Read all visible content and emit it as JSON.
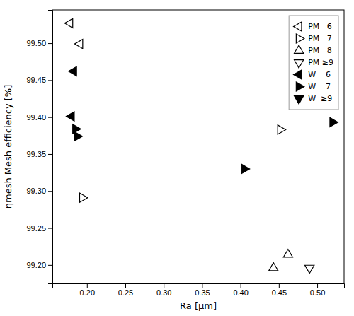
{
  "chart_data": {
    "type": "scatter",
    "xlabel": "Ra [μm]",
    "ylabel": "ηmesh Mesh efficiency [%]",
    "xlim": [
      0.155,
      0.535
    ],
    "ylim": [
      99.175,
      99.545
    ],
    "xticks": [
      {
        "value": 0.2,
        "label": "0.20"
      },
      0.25,
      {
        "value": 0.3,
        "label": "0.30"
      },
      0.35,
      {
        "value": 0.4,
        "label": "0.40"
      },
      0.45,
      {
        "value": 0.5,
        "label": "0.50"
      }
    ],
    "yticks": [
      {
        "value": 99.2,
        "label": "99.20"
      },
      99.25,
      {
        "value": 99.3,
        "label": "99.30"
      },
      99.35,
      {
        "value": 99.4,
        "label": "99.40"
      },
      99.45,
      {
        "value": 99.5,
        "label": "99.50"
      }
    ],
    "grid": false,
    "legend": "upper right",
    "series": [
      {
        "name": "PM   6",
        "marker": "triangle-left-open",
        "color": "black",
        "x": [
          0.178,
          0.191
        ],
        "values": [
          99.527,
          99.499
        ]
      },
      {
        "name": "PM   7",
        "marker": "triangle-right-open",
        "color": "black",
        "x": [
          0.194,
          0.452
        ],
        "values": [
          99.291,
          99.383
        ]
      },
      {
        "name": "PM   8",
        "marker": "triangle-up-open",
        "color": "black",
        "x": [
          0.443,
          0.462
        ],
        "values": [
          99.196,
          99.214
        ]
      },
      {
        "name": "PM ≥9",
        "marker": "triangle-down-open",
        "color": "black",
        "x": [
          0.49
        ],
        "values": [
          99.196
        ]
      },
      {
        "name": "W    6",
        "marker": "triangle-left",
        "color": "black",
        "x": [
          0.18,
          0.183
        ],
        "values": [
          99.401,
          99.462
        ]
      },
      {
        "name": "W    7",
        "marker": "triangle-right",
        "color": "black",
        "x": [
          0.185,
          0.187,
          0.405,
          0.52
        ],
        "values": [
          99.384,
          99.374,
          99.33,
          99.393
        ]
      },
      {
        "name": "W  ≥9",
        "marker": "triangle-down",
        "color": "black",
        "x": [],
        "values": []
      }
    ]
  }
}
